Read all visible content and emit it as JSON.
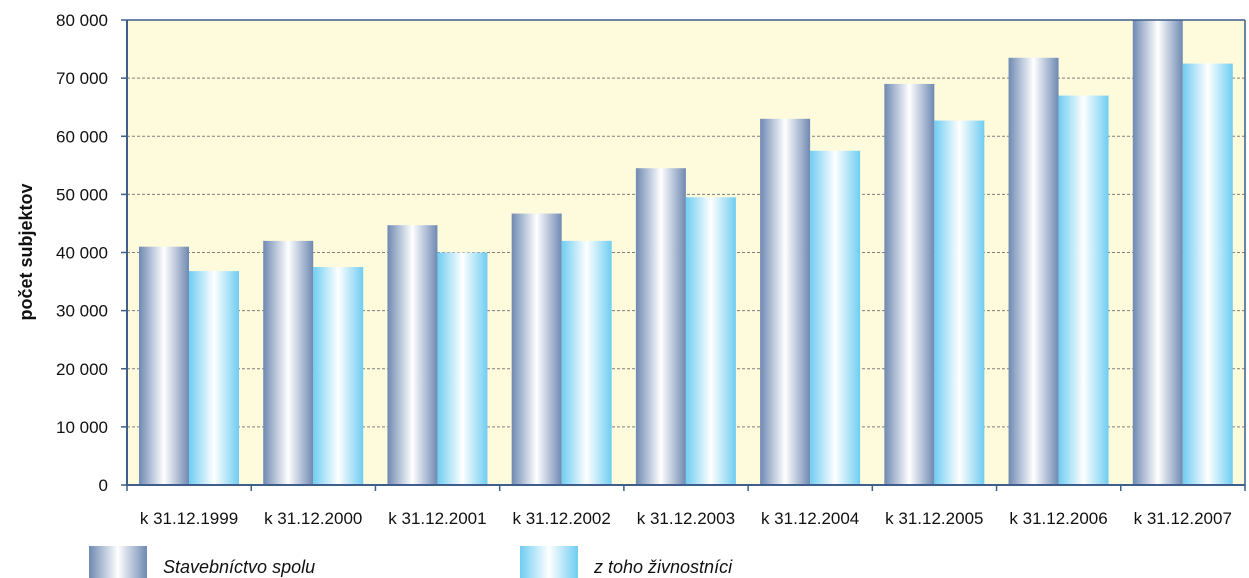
{
  "chart_data": {
    "type": "bar",
    "title": "",
    "xlabel": "",
    "ylabel": "počet subjektov",
    "ylim": [
      0,
      80000
    ],
    "yticks": [
      0,
      10000,
      20000,
      30000,
      40000,
      50000,
      60000,
      70000,
      80000
    ],
    "ytick_labels": [
      "0",
      "10 000",
      "20 000",
      "30 000",
      "40 000",
      "50 000",
      "60 000",
      "70 000",
      "80 000"
    ],
    "grid": "horizontal dashed",
    "legend_position": "bottom",
    "categories": [
      "k 31.12.1999",
      "k 31.12.2000",
      "k 31.12.2001",
      "k 31.12.2002",
      "k 31.12.2003",
      "k 31.12.2004",
      "k 31.12.2005",
      "k 31.12.2006",
      "k 31.12.2007"
    ],
    "series": [
      {
        "name": "Stavebníctvo spolu",
        "color": "#8fa6c8",
        "values": [
          41000,
          42000,
          44700,
          46700,
          54500,
          63000,
          69000,
          73500,
          80000
        ]
      },
      {
        "name": "z toho živnostníci",
        "color": "#8fd8f4",
        "values": [
          36800,
          37500,
          40000,
          42000,
          49500,
          57500,
          62700,
          67000,
          72500
        ]
      }
    ],
    "colors": {
      "plot_background": "#fdfbdc",
      "axis": "#3d5f8a",
      "grid": "#7f7f7f"
    }
  }
}
